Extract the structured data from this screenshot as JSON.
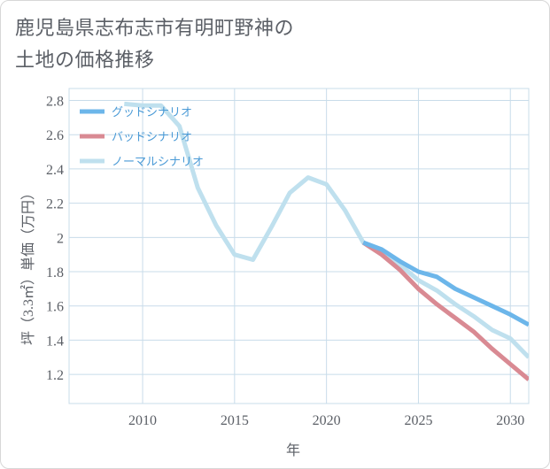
{
  "title": {
    "line1": "鹿児島県志布志市有明町野神の",
    "line2": "土地の価格推移"
  },
  "colors": {
    "good": "#6cb6ea",
    "bad": "#d98a93",
    "normal": "#bfe0ee",
    "grid": "#c8dcea"
  },
  "chart_data": {
    "type": "line",
    "xlabel": "年",
    "ylabel": "坪（3.3㎡）単価（万円）",
    "xlim": [
      2006,
      2031
    ],
    "ylim": [
      1.03,
      2.87
    ],
    "xticks": [
      2010,
      2015,
      2020,
      2025,
      2030
    ],
    "yticks": [
      1.2,
      1.4,
      1.6,
      1.8,
      2,
      2.2,
      2.4,
      2.6,
      2.8
    ],
    "grid": true,
    "legend_position": "top-left",
    "series": [
      {
        "name": "グッドシナリオ",
        "color": "#6cb6ea",
        "x": [
          2022,
          2023,
          2024,
          2025,
          2026,
          2027,
          2028,
          2029,
          2030,
          2031
        ],
        "y": [
          1.97,
          1.93,
          1.86,
          1.8,
          1.77,
          1.7,
          1.65,
          1.6,
          1.55,
          1.49
        ]
      },
      {
        "name": "バッドシナリオ",
        "color": "#d98a93",
        "x": [
          2022,
          2023,
          2024,
          2025,
          2026,
          2027,
          2028,
          2029,
          2030,
          2031
        ],
        "y": [
          1.97,
          1.9,
          1.81,
          1.7,
          1.61,
          1.53,
          1.45,
          1.35,
          1.26,
          1.17
        ]
      },
      {
        "name": "ノーマルシナリオ",
        "color": "#bfe0ee",
        "x": [
          2009,
          2010,
          2011,
          2012,
          2013,
          2014,
          2015,
          2016,
          2017,
          2018,
          2019,
          2020,
          2021,
          2022,
          2023,
          2024,
          2025,
          2026,
          2027,
          2028,
          2029,
          2030,
          2031
        ],
        "y": [
          2.78,
          2.77,
          2.77,
          2.65,
          2.29,
          2.07,
          1.9,
          1.87,
          2.06,
          2.26,
          2.35,
          2.31,
          2.16,
          1.97,
          1.91,
          1.84,
          1.75,
          1.69,
          1.61,
          1.54,
          1.46,
          1.41,
          1.3
        ]
      }
    ]
  }
}
